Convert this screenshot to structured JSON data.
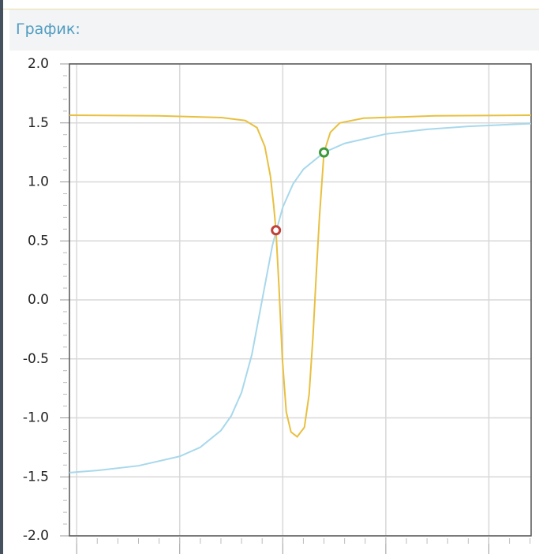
{
  "header": {
    "title": "График:"
  },
  "chart_data": {
    "type": "line",
    "xlim": [
      -9.35,
      13.05
    ],
    "ylim": [
      -2.0,
      2.0
    ],
    "xticks": [
      -9,
      -4,
      1,
      6,
      11
    ],
    "xminorticks": [
      -9,
      -8,
      -7,
      -6,
      -5,
      -4,
      -3,
      -2,
      -1,
      0,
      1,
      2,
      3,
      4,
      5,
      6,
      7,
      8,
      9,
      10,
      11,
      12,
      13
    ],
    "yticks": [
      {
        "value": 2.0,
        "label": "2.0"
      },
      {
        "value": 1.5,
        "label": "1.5"
      },
      {
        "value": 1.0,
        "label": "1.0"
      },
      {
        "value": 0.5,
        "label": "0.5"
      },
      {
        "value": 0.0,
        "label": "0.0"
      },
      {
        "value": -0.5,
        "label": "-0.5"
      },
      {
        "value": -1.0,
        "label": "-1.0"
      },
      {
        "value": -1.5,
        "label": "-1.5"
      },
      {
        "value": -2.0,
        "label": "-2.0"
      }
    ],
    "yminorticks": [
      -1.9,
      -1.8,
      -1.7,
      -1.6,
      -1.4,
      -1.3,
      -1.2,
      -1.1,
      -0.9,
      -0.8,
      -0.7,
      -0.6,
      -0.4,
      -0.3,
      -0.2,
      -0.1,
      0.1,
      0.2,
      0.3,
      0.4,
      0.6,
      0.7,
      0.8,
      0.9,
      1.1,
      1.2,
      1.3,
      1.4,
      1.6,
      1.7,
      1.8,
      1.9
    ],
    "grid": true,
    "series": [
      {
        "color": "#a8d8ec",
        "x": [
          -9.35,
          -8,
          -6,
          -4,
          -3,
          -2,
          -1.5,
          -1,
          -0.5,
          0,
          0.5,
          1,
          1.5,
          2,
          3,
          4,
          6,
          8,
          10,
          13.05
        ],
        "values": [
          -1.464,
          -1.446,
          -1.406,
          -1.326,
          -1.249,
          -1.107,
          -0.983,
          -0.785,
          -0.464,
          0,
          0.464,
          0.785,
          0.983,
          1.107,
          1.249,
          1.326,
          1.406,
          1.446,
          1.471,
          1.494
        ]
      },
      {
        "color": "#e8c040",
        "x": [
          -9.35,
          -5.04,
          -1.97,
          -0.82,
          -0.25,
          0.13,
          0.4,
          0.56,
          0.67,
          0.82,
          0.98,
          1.17,
          1.4,
          1.7,
          2.05,
          2.28,
          2.47,
          2.62,
          2.78,
          3.0,
          3.31,
          3.77,
          4.92,
          8.37,
          13.05
        ],
        "values": [
          1.565,
          1.56,
          1.545,
          1.52,
          1.46,
          1.3,
          1.05,
          0.8,
          0.59,
          0.1,
          -0.5,
          -0.95,
          -1.12,
          -1.16,
          -1.08,
          -0.8,
          -0.3,
          0.2,
          0.7,
          1.25,
          1.42,
          1.5,
          1.54,
          1.56,
          1.565
        ]
      }
    ],
    "points": [
      {
        "x": 0.67,
        "y": 0.59,
        "color": "#c0403a"
      },
      {
        "x": 3.0,
        "y": 1.25,
        "color": "#3d9a3d"
      }
    ]
  }
}
